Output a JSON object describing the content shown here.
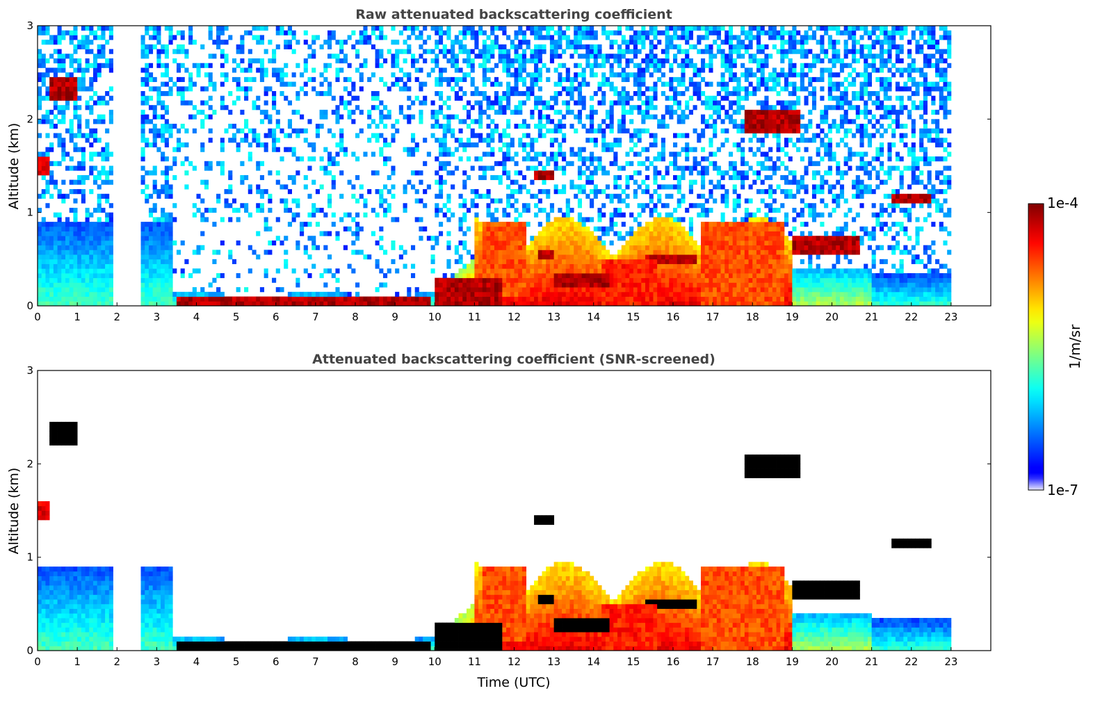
{
  "chart_data": [
    {
      "type": "heatmap",
      "title": "Raw attenuated backscattering coefficient",
      "xlabel": "",
      "ylabel": "Altitude (km)",
      "xlim": [
        0,
        24
      ],
      "ylim": [
        0,
        3
      ],
      "xticks": [
        "0",
        "1",
        "2",
        "3",
        "4",
        "5",
        "6",
        "7",
        "8",
        "9",
        "10",
        "11",
        "12",
        "13",
        "14",
        "15",
        "16",
        "17",
        "18",
        "19",
        "20",
        "21",
        "22",
        "23"
      ],
      "yticks": [
        "0",
        "1",
        "2",
        "3"
      ],
      "data_gap_utc": [
        1.95,
        2.6
      ],
      "data_end_utc": 23.0,
      "features": [
        {
          "t0": 0.35,
          "t1": 1.0,
          "z0": 2.2,
          "z1": 2.45,
          "level": 0.95
        },
        {
          "t0": 0.0,
          "t1": 0.25,
          "z0": 1.4,
          "z1": 1.6,
          "level": 0.9
        },
        {
          "t0": 3.5,
          "t1": 9.9,
          "z0": 0.0,
          "z1": 0.1,
          "level": 0.95
        },
        {
          "t0": 10.0,
          "t1": 11.7,
          "z0": 0.0,
          "z1": 0.3,
          "level": 0.95
        },
        {
          "t0": 11.2,
          "t1": 12.3,
          "z0": 0.1,
          "z1": 0.9,
          "level": 0.8
        },
        {
          "t0": 12.5,
          "t1": 13.0,
          "z0": 1.35,
          "z1": 1.45,
          "level": 0.95
        },
        {
          "t0": 12.6,
          "t1": 13.0,
          "z0": 0.5,
          "z1": 0.6,
          "level": 0.95
        },
        {
          "t0": 13.0,
          "t1": 14.4,
          "z0": 0.2,
          "z1": 0.35,
          "level": 0.95
        },
        {
          "t0": 14.2,
          "t1": 15.6,
          "z0": 0.0,
          "z1": 0.5,
          "level": 0.85
        },
        {
          "t0": 15.3,
          "t1": 16.6,
          "z0": 0.45,
          "z1": 0.55,
          "level": 0.95
        },
        {
          "t0": 16.7,
          "t1": 18.8,
          "z0": 0.0,
          "z1": 0.9,
          "level": 0.8
        },
        {
          "t0": 17.8,
          "t1": 19.2,
          "z0": 1.85,
          "z1": 2.1,
          "level": 0.95
        },
        {
          "t0": 19.0,
          "t1": 20.7,
          "z0": 0.55,
          "z1": 0.75,
          "level": 0.95
        },
        {
          "t0": 21.5,
          "t1": 22.5,
          "z0": 1.1,
          "z1": 1.2,
          "level": 0.95
        }
      ]
    },
    {
      "type": "heatmap",
      "title": "Attenuated backscattering coefficient (SNR-screened)",
      "xlabel": "Time (UTC)",
      "ylabel": "Altitude (km)",
      "xlim": [
        0,
        24
      ],
      "ylim": [
        0,
        3
      ],
      "xticks": [
        "0",
        "1",
        "2",
        "3",
        "4",
        "5",
        "6",
        "7",
        "8",
        "9",
        "10",
        "11",
        "12",
        "13",
        "14",
        "15",
        "16",
        "17",
        "18",
        "19",
        "20",
        "21",
        "22",
        "23"
      ],
      "yticks": [
        "0",
        "1",
        "2",
        "3"
      ],
      "data_gap_utc": [
        1.95,
        2.6
      ],
      "data_end_utc": 23.0,
      "screened_color": "#000000"
    }
  ],
  "colorbar": {
    "label": "1/m/sr",
    "max_label": "1e-4",
    "min_label": "1e-7",
    "colormap": "jet",
    "low_end_colors": [
      "#e8e8ff",
      "#9090ff",
      "#3030ff",
      "#0000ff"
    ]
  }
}
